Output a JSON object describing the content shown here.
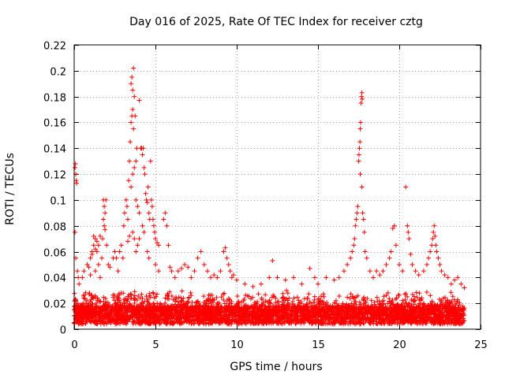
{
  "chart_data": {
    "type": "scatter",
    "title": "Day 016 of 2025, Rate Of TEC Index for receiver cztg",
    "xlabel": "GPS time / hours",
    "ylabel": "ROTI / TECUs",
    "xlim": [
      0,
      25
    ],
    "ylim": [
      0,
      0.22
    ],
    "xticks": [
      0,
      5,
      10,
      15,
      20,
      25
    ],
    "xtick_labels": [
      "0",
      "5",
      "10",
      "15",
      "20",
      "25"
    ],
    "yticks": [
      0,
      0.02,
      0.04,
      0.06,
      0.08,
      0.1,
      0.12,
      0.14,
      0.16,
      0.18,
      0.2,
      0.22
    ],
    "ytick_labels": [
      "0",
      "0.02",
      "0.04",
      "0.06",
      "0.08",
      "0.1",
      "0.12",
      "0.14",
      "0.16",
      "0.18",
      "0.2",
      "0.22"
    ],
    "grid": true,
    "marker": "plus",
    "color": "#ff0000",
    "series": [
      {
        "name": "ROTI",
        "points": [
          [
            0.05,
            0.125
          ],
          [
            0.08,
            0.128
          ],
          [
            0.1,
            0.12
          ],
          [
            0.12,
            0.115
          ],
          [
            0.15,
            0.113
          ],
          [
            0.05,
            0.075
          ],
          [
            0.1,
            0.055
          ],
          [
            0.2,
            0.045
          ],
          [
            0.25,
            0.04
          ],
          [
            0.3,
            0.035
          ],
          [
            0.5,
            0.04
          ],
          [
            0.6,
            0.045
          ],
          [
            0.8,
            0.05
          ],
          [
            1.0,
            0.055
          ],
          [
            1.1,
            0.06
          ],
          [
            1.2,
            0.072
          ],
          [
            1.3,
            0.07
          ],
          [
            1.4,
            0.068
          ],
          [
            1.5,
            0.065
          ],
          [
            1.6,
            0.072
          ],
          [
            1.2,
            0.065
          ],
          [
            1.3,
            0.062
          ],
          [
            1.4,
            0.06
          ],
          [
            1.1,
            0.058
          ],
          [
            1.3,
            0.045
          ],
          [
            1.5,
            0.05
          ],
          [
            1.7,
            0.055
          ],
          [
            0.9,
            0.048
          ],
          [
            1.0,
            0.042
          ],
          [
            1.6,
            0.04
          ],
          [
            1.8,
            0.1
          ],
          [
            1.85,
            0.095
          ],
          [
            1.9,
            0.09
          ],
          [
            1.95,
            0.1
          ],
          [
            1.8,
            0.085
          ],
          [
            1.85,
            0.08
          ],
          [
            1.9,
            0.077
          ],
          [
            1.75,
            0.07
          ],
          [
            2.0,
            0.065
          ],
          [
            2.1,
            0.05
          ],
          [
            2.2,
            0.048
          ],
          [
            2.4,
            0.055
          ],
          [
            2.5,
            0.06
          ],
          [
            2.6,
            0.055
          ],
          [
            2.7,
            0.045
          ],
          [
            2.8,
            0.06
          ],
          [
            2.9,
            0.065
          ],
          [
            3.0,
            0.055
          ],
          [
            3.05,
            0.08
          ],
          [
            3.1,
            0.09
          ],
          [
            3.2,
            0.1
          ],
          [
            3.25,
            0.095
          ],
          [
            3.3,
            0.085
          ],
          [
            3.35,
            0.115
          ],
          [
            3.4,
            0.13
          ],
          [
            3.45,
            0.145
          ],
          [
            3.5,
            0.16
          ],
          [
            3.55,
            0.165
          ],
          [
            3.6,
            0.17
          ],
          [
            3.65,
            0.155
          ],
          [
            3.5,
            0.19
          ],
          [
            3.55,
            0.195
          ],
          [
            3.6,
            0.185
          ],
          [
            3.65,
            0.202
          ],
          [
            3.7,
            0.18
          ],
          [
            3.75,
            0.165
          ],
          [
            3.8,
            0.13
          ],
          [
            3.85,
            0.14
          ],
          [
            3.5,
            0.11
          ],
          [
            3.6,
            0.12
          ],
          [
            3.7,
            0.125
          ],
          [
            3.8,
            0.1
          ],
          [
            3.9,
            0.095
          ],
          [
            4.0,
            0.09
          ],
          [
            4.1,
            0.14
          ],
          [
            4.15,
            0.14
          ],
          [
            4.2,
            0.135
          ],
          [
            4.25,
            0.14
          ],
          [
            4.0,
            0.177
          ],
          [
            4.3,
            0.125
          ],
          [
            4.35,
            0.12
          ],
          [
            4.4,
            0.105
          ],
          [
            4.45,
            0.1
          ],
          [
            4.5,
            0.098
          ],
          [
            4.55,
            0.11
          ],
          [
            4.6,
            0.09
          ],
          [
            4.65,
            0.085
          ],
          [
            4.7,
            0.13
          ],
          [
            4.75,
            0.1
          ],
          [
            4.8,
            0.095
          ],
          [
            4.85,
            0.085
          ],
          [
            4.9,
            0.08
          ],
          [
            4.95,
            0.075
          ],
          [
            5.0,
            0.07
          ],
          [
            5.1,
            0.067
          ],
          [
            5.2,
            0.065
          ],
          [
            4.2,
            0.08
          ],
          [
            4.3,
            0.075
          ],
          [
            4.0,
            0.07
          ],
          [
            3.9,
            0.065
          ],
          [
            3.8,
            0.06
          ],
          [
            3.7,
            0.07
          ],
          [
            3.6,
            0.075
          ],
          [
            3.4,
            0.072
          ],
          [
            3.3,
            0.068
          ],
          [
            4.5,
            0.06
          ],
          [
            4.6,
            0.055
          ],
          [
            5.0,
            0.05
          ],
          [
            5.2,
            0.045
          ],
          [
            5.5,
            0.085
          ],
          [
            5.6,
            0.09
          ],
          [
            5.7,
            0.08
          ],
          [
            5.8,
            0.065
          ],
          [
            5.9,
            0.048
          ],
          [
            6.0,
            0.045
          ],
          [
            6.2,
            0.04
          ],
          [
            6.4,
            0.045
          ],
          [
            6.6,
            0.047
          ],
          [
            6.8,
            0.05
          ],
          [
            7.0,
            0.048
          ],
          [
            7.2,
            0.04
          ],
          [
            7.4,
            0.045
          ],
          [
            7.6,
            0.055
          ],
          [
            7.8,
            0.06
          ],
          [
            8.0,
            0.05
          ],
          [
            8.2,
            0.045
          ],
          [
            8.4,
            0.04
          ],
          [
            8.6,
            0.042
          ],
          [
            8.8,
            0.04
          ],
          [
            9.0,
            0.045
          ],
          [
            9.2,
            0.06
          ],
          [
            9.3,
            0.063
          ],
          [
            9.4,
            0.055
          ],
          [
            9.5,
            0.05
          ],
          [
            9.6,
            0.045
          ],
          [
            9.7,
            0.04
          ],
          [
            9.8,
            0.042
          ],
          [
            10.0,
            0.038
          ],
          [
            10.5,
            0.035
          ],
          [
            11.0,
            0.033
          ],
          [
            11.5,
            0.035
          ],
          [
            12.0,
            0.04
          ],
          [
            12.2,
            0.053
          ],
          [
            12.5,
            0.04
          ],
          [
            13.0,
            0.038
          ],
          [
            13.5,
            0.04
          ],
          [
            14.0,
            0.035
          ],
          [
            14.5,
            0.047
          ],
          [
            14.8,
            0.04
          ],
          [
            15.0,
            0.035
          ],
          [
            15.5,
            0.04
          ],
          [
            16.0,
            0.038
          ],
          [
            16.3,
            0.04
          ],
          [
            16.6,
            0.045
          ],
          [
            16.8,
            0.05
          ],
          [
            17.0,
            0.055
          ],
          [
            17.1,
            0.06
          ],
          [
            17.2,
            0.065
          ],
          [
            17.25,
            0.07
          ],
          [
            17.3,
            0.08
          ],
          [
            17.35,
            0.085
          ],
          [
            17.4,
            0.09
          ],
          [
            17.45,
            0.095
          ],
          [
            17.5,
            0.13
          ],
          [
            17.52,
            0.135
          ],
          [
            17.55,
            0.14
          ],
          [
            17.58,
            0.145
          ],
          [
            17.6,
            0.155
          ],
          [
            17.62,
            0.16
          ],
          [
            17.65,
            0.175
          ],
          [
            17.68,
            0.18
          ],
          [
            17.7,
            0.183
          ],
          [
            17.72,
            0.178
          ],
          [
            17.6,
            0.12
          ],
          [
            17.7,
            0.11
          ],
          [
            17.75,
            0.09
          ],
          [
            17.8,
            0.085
          ],
          [
            17.85,
            0.075
          ],
          [
            17.9,
            0.06
          ],
          [
            18.0,
            0.055
          ],
          [
            18.2,
            0.045
          ],
          [
            18.4,
            0.04
          ],
          [
            18.6,
            0.045
          ],
          [
            18.8,
            0.042
          ],
          [
            19.0,
            0.045
          ],
          [
            19.2,
            0.05
          ],
          [
            19.4,
            0.055
          ],
          [
            19.5,
            0.06
          ],
          [
            19.6,
            0.078
          ],
          [
            19.7,
            0.08
          ],
          [
            19.8,
            0.065
          ],
          [
            20.0,
            0.05
          ],
          [
            20.2,
            0.045
          ],
          [
            20.4,
            0.11
          ],
          [
            20.5,
            0.08
          ],
          [
            20.55,
            0.075
          ],
          [
            20.6,
            0.07
          ],
          [
            20.7,
            0.058
          ],
          [
            20.8,
            0.05
          ],
          [
            21.0,
            0.045
          ],
          [
            21.2,
            0.042
          ],
          [
            21.5,
            0.045
          ],
          [
            21.7,
            0.05
          ],
          [
            21.8,
            0.055
          ],
          [
            21.9,
            0.06
          ],
          [
            22.0,
            0.065
          ],
          [
            22.05,
            0.07
          ],
          [
            22.1,
            0.075
          ],
          [
            22.15,
            0.08
          ],
          [
            22.2,
            0.072
          ],
          [
            22.25,
            0.065
          ],
          [
            22.3,
            0.06
          ],
          [
            22.4,
            0.055
          ],
          [
            22.5,
            0.05
          ],
          [
            22.6,
            0.045
          ],
          [
            22.8,
            0.042
          ],
          [
            23.0,
            0.04
          ],
          [
            23.2,
            0.035
          ],
          [
            23.4,
            0.038
          ],
          [
            23.6,
            0.04
          ],
          [
            23.8,
            0.035
          ],
          [
            24.0,
            0.032
          ]
        ]
      }
    ]
  }
}
